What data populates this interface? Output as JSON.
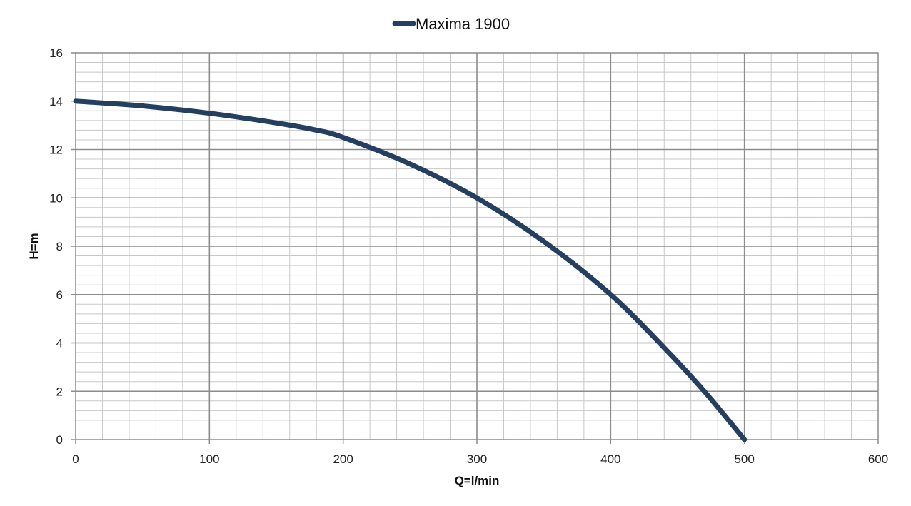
{
  "chart_data": {
    "type": "line",
    "xlabel": "Q=l/min",
    "ylabel": "H=m",
    "xlim": [
      0,
      600
    ],
    "ylim": [
      0,
      16
    ],
    "x_ticks": [
      "0",
      "100",
      "200",
      "300",
      "400",
      "500",
      "600"
    ],
    "y_ticks": [
      "0",
      "2",
      "4",
      "6",
      "8",
      "10",
      "12",
      "14",
      "16"
    ],
    "x_major_step": 100,
    "x_minor_step": 20,
    "y_major_step": 2,
    "y_minor_step": 0.4,
    "grid": true,
    "legend_position": "top-center",
    "series": [
      {
        "name": "Maxima 1900",
        "color": "#243f60",
        "x": [
          0,
          50,
          100,
          150,
          180,
          200,
          250,
          300,
          350,
          400,
          440,
          470,
          500
        ],
        "y": [
          14,
          13.8,
          13.5,
          13.1,
          12.8,
          12.5,
          11.4,
          10,
          8.2,
          6,
          3.8,
          2.0,
          0
        ]
      }
    ]
  }
}
